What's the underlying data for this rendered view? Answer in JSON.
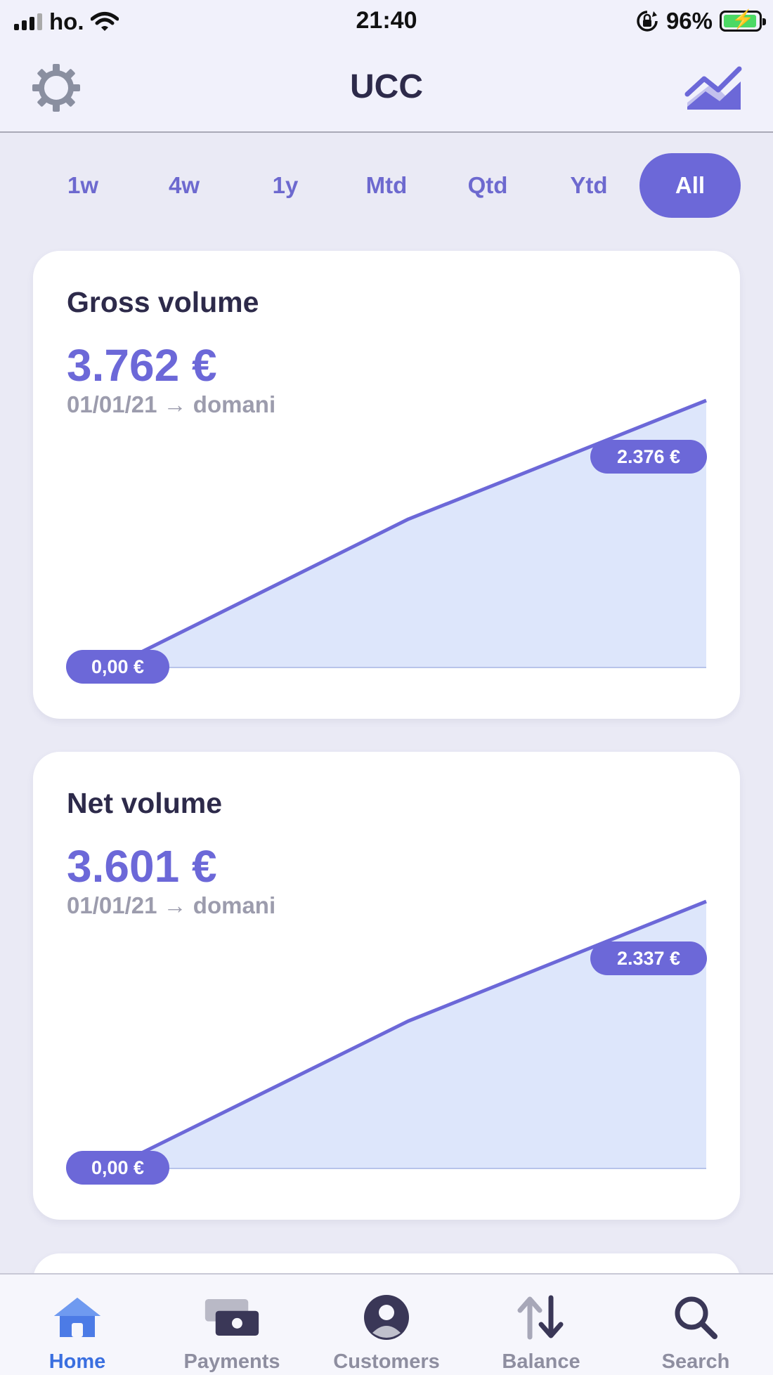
{
  "status_bar": {
    "carrier": "ho.",
    "time": "21:40",
    "battery_percent": "96%"
  },
  "nav": {
    "title": "UCC",
    "left_icon": "gear-icon",
    "right_icon": "trend-chart-icon"
  },
  "periods": {
    "items": [
      "1w",
      "4w",
      "1y",
      "Mtd",
      "Qtd",
      "Ytd",
      "All"
    ],
    "selected": "All"
  },
  "cards": [
    {
      "title": "Gross volume",
      "value": "3.762 €",
      "range": "01/01/21 → domani",
      "min_label": "0,00 €",
      "max_label": "2.376 €"
    },
    {
      "title": "Net volume",
      "value": "3.601 €",
      "range": "01/01/21 → domani",
      "min_label": "0,00 €",
      "max_label": "2.337 €"
    }
  ],
  "chart_data": [
    {
      "type": "area",
      "title": "Gross volume",
      "x": [
        0,
        1,
        2
      ],
      "values": [
        0,
        1320,
        2376
      ],
      "ylim": [
        0,
        2376
      ],
      "color": "#6c68d8",
      "fill": "#dde6fb"
    },
    {
      "type": "area",
      "title": "Net volume",
      "x": [
        0,
        1,
        2
      ],
      "values": [
        0,
        1290,
        2337
      ],
      "ylim": [
        0,
        2337
      ],
      "color": "#6c68d8",
      "fill": "#dde6fb"
    }
  ],
  "tabbar": {
    "items": [
      {
        "label": "Home",
        "icon": "home-icon",
        "active": true
      },
      {
        "label": "Payments",
        "icon": "payments-icon",
        "active": false
      },
      {
        "label": "Customers",
        "icon": "customer-icon",
        "active": false
      },
      {
        "label": "Balance",
        "icon": "transfer-arrows-icon",
        "active": false
      },
      {
        "label": "Search",
        "icon": "search-icon",
        "active": false
      }
    ]
  },
  "colors": {
    "accent": "#6c68d8",
    "active_tab": "#3a6fe0",
    "title": "#2d2a4a"
  }
}
